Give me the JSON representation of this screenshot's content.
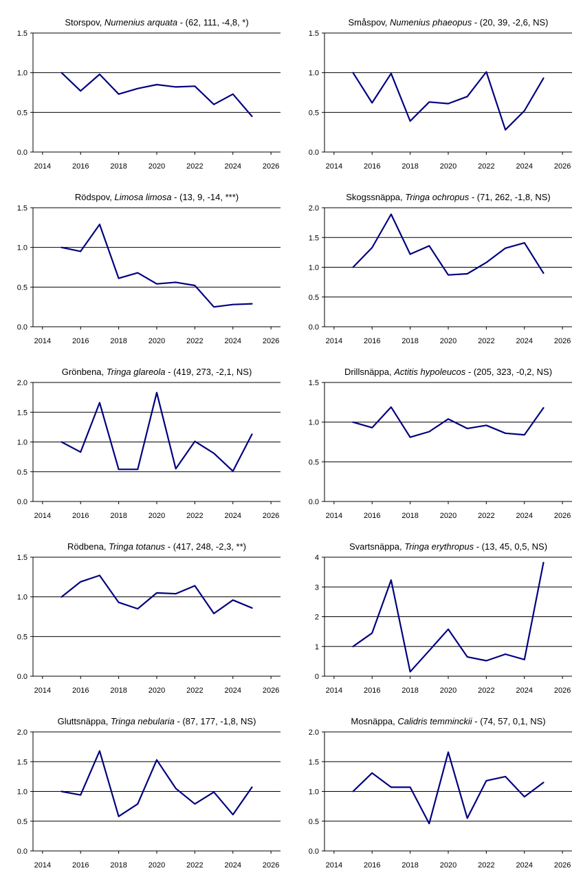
{
  "chart_data": [
    {
      "type": "line",
      "title": {
        "common": "Storspov",
        "sep": ", ",
        "scientific": "Numenius arquata",
        "stats": " - (62, 111, -4,8, *)"
      },
      "x": [
        2015,
        2016,
        2017,
        2018,
        2019,
        2020,
        2021,
        2022,
        2023,
        2024,
        2025
      ],
      "series": [
        {
          "values": [
            1.0,
            0.77,
            0.98,
            0.73,
            0.8,
            0.85,
            0.82,
            0.83,
            0.6,
            0.73,
            0.45
          ]
        }
      ],
      "xlim": [
        2013.5,
        2026.5
      ],
      "xticks": [
        2014,
        2016,
        2018,
        2020,
        2022,
        2024,
        2026
      ],
      "ylim": [
        0,
        1.5
      ],
      "yticks": [
        0.0,
        0.5,
        1.0,
        1.5
      ],
      "ytick_labels": [
        "0.0",
        "0.5",
        "1.0",
        "1.5"
      ],
      "grid": "horizontal"
    },
    {
      "type": "line",
      "title": {
        "common": "Småspov",
        "sep": ", ",
        "scientific": "Numenius phaeopus",
        "stats": " - (20, 39, -2,6, NS)"
      },
      "x": [
        2015,
        2016,
        2017,
        2018,
        2019,
        2020,
        2021,
        2022,
        2023,
        2024,
        2025
      ],
      "series": [
        {
          "values": [
            1.0,
            0.62,
            0.99,
            0.39,
            0.63,
            0.61,
            0.7,
            1.01,
            0.28,
            0.52,
            0.93
          ]
        }
      ],
      "xlim": [
        2013.5,
        2026.5
      ],
      "xticks": [
        2014,
        2016,
        2018,
        2020,
        2022,
        2024,
        2026
      ],
      "ylim": [
        0,
        1.5
      ],
      "yticks": [
        0.0,
        0.5,
        1.0,
        1.5
      ],
      "ytick_labels": [
        "0.0",
        "0.5",
        "1.0",
        "1.5"
      ],
      "grid": "horizontal"
    },
    {
      "type": "line",
      "title": {
        "common": "Rödspov",
        "sep": ", ",
        "scientific": "Limosa limosa",
        "stats": " - (13, 9, -14, ***)"
      },
      "x": [
        2015,
        2016,
        2017,
        2018,
        2019,
        2020,
        2021,
        2022,
        2023,
        2024,
        2025
      ],
      "series": [
        {
          "values": [
            1.0,
            0.95,
            1.29,
            0.61,
            0.68,
            0.54,
            0.56,
            0.52,
            0.25,
            0.28,
            0.29
          ]
        }
      ],
      "xlim": [
        2013.5,
        2026.5
      ],
      "xticks": [
        2014,
        2016,
        2018,
        2020,
        2022,
        2024,
        2026
      ],
      "ylim": [
        0,
        1.5
      ],
      "yticks": [
        0.0,
        0.5,
        1.0,
        1.5
      ],
      "ytick_labels": [
        "0.0",
        "0.5",
        "1.0",
        "1.5"
      ],
      "grid": "horizontal"
    },
    {
      "type": "line",
      "title": {
        "common": "Skogssnäppa",
        "sep": ", ",
        "scientific": "Tringa ochropus",
        "stats": " - (71, 262, -1,8, NS)"
      },
      "x": [
        2015,
        2016,
        2017,
        2018,
        2019,
        2020,
        2021,
        2022,
        2023,
        2024,
        2025
      ],
      "series": [
        {
          "values": [
            1.0,
            1.33,
            1.89,
            1.22,
            1.36,
            0.87,
            0.89,
            1.08,
            1.32,
            1.41,
            0.9
          ]
        }
      ],
      "xlim": [
        2013.5,
        2026.5
      ],
      "xticks": [
        2014,
        2016,
        2018,
        2020,
        2022,
        2024,
        2026
      ],
      "ylim": [
        0,
        2.0
      ],
      "yticks": [
        0.0,
        0.5,
        1.0,
        1.5,
        2.0
      ],
      "ytick_labels": [
        "0.0",
        "0.5",
        "1.0",
        "1.5",
        "2.0"
      ],
      "grid": "horizontal"
    },
    {
      "type": "line",
      "title": {
        "common": "Grönbena",
        "sep": ", ",
        "scientific": "Tringa glareola",
        "stats": " - (419, 273, -2,1, NS)"
      },
      "x": [
        2015,
        2016,
        2017,
        2018,
        2019,
        2020,
        2021,
        2022,
        2023,
        2024,
        2025
      ],
      "series": [
        {
          "values": [
            1.0,
            0.83,
            1.66,
            0.54,
            0.54,
            1.83,
            0.55,
            1.01,
            0.81,
            0.51,
            1.13
          ]
        }
      ],
      "xlim": [
        2013.5,
        2026.5
      ],
      "xticks": [
        2014,
        2016,
        2018,
        2020,
        2022,
        2024,
        2026
      ],
      "ylim": [
        0,
        2.0
      ],
      "yticks": [
        0.0,
        0.5,
        1.0,
        1.5,
        2.0
      ],
      "ytick_labels": [
        "0.0",
        "0.5",
        "1.0",
        "1.5",
        "2.0"
      ],
      "grid": "horizontal"
    },
    {
      "type": "line",
      "title": {
        "common": "Drillsnäppa",
        "sep": ", ",
        "scientific": "Actitis hypoleucos",
        "stats": " - (205, 323, -0,2, NS)"
      },
      "x": [
        2015,
        2016,
        2017,
        2018,
        2019,
        2020,
        2021,
        2022,
        2023,
        2024,
        2025
      ],
      "series": [
        {
          "values": [
            1.0,
            0.93,
            1.19,
            0.81,
            0.88,
            1.04,
            0.92,
            0.96,
            0.86,
            0.84,
            1.18
          ]
        }
      ],
      "xlim": [
        2013.5,
        2026.5
      ],
      "xticks": [
        2014,
        2016,
        2018,
        2020,
        2022,
        2024,
        2026
      ],
      "ylim": [
        0,
        1.5
      ],
      "yticks": [
        0.0,
        0.5,
        1.0,
        1.5
      ],
      "ytick_labels": [
        "0.0",
        "0.5",
        "1.0",
        "1.5"
      ],
      "grid": "horizontal"
    },
    {
      "type": "line",
      "title": {
        "common": "Rödbena",
        "sep": ", ",
        "scientific": "Tringa totanus",
        "stats": " - (417, 248, -2,3, **)"
      },
      "x": [
        2015,
        2016,
        2017,
        2018,
        2019,
        2020,
        2021,
        2022,
        2023,
        2024,
        2025
      ],
      "series": [
        {
          "values": [
            1.0,
            1.19,
            1.27,
            0.93,
            0.85,
            1.05,
            1.04,
            1.14,
            0.79,
            0.96,
            0.86
          ]
        }
      ],
      "xlim": [
        2013.5,
        2026.5
      ],
      "xticks": [
        2014,
        2016,
        2018,
        2020,
        2022,
        2024,
        2026
      ],
      "ylim": [
        0,
        1.5
      ],
      "yticks": [
        0.0,
        0.5,
        1.0,
        1.5
      ],
      "ytick_labels": [
        "0.0",
        "0.5",
        "1.0",
        "1.5"
      ],
      "grid": "horizontal"
    },
    {
      "type": "line",
      "title": {
        "common": "Svartsnäppa",
        "sep": ", ",
        "scientific": "Tringa erythropus",
        "stats": " - (13, 45, 0,5, NS)"
      },
      "x": [
        2015,
        2016,
        2017,
        2018,
        2019,
        2020,
        2021,
        2022,
        2023,
        2024,
        2025
      ],
      "series": [
        {
          "values": [
            1.0,
            1.45,
            3.23,
            0.15,
            0.86,
            1.58,
            0.65,
            0.52,
            0.74,
            0.56,
            3.82
          ]
        }
      ],
      "xlim": [
        2013.5,
        2026.5
      ],
      "xticks": [
        2014,
        2016,
        2018,
        2020,
        2022,
        2024,
        2026
      ],
      "ylim": [
        0,
        4
      ],
      "yticks": [
        0,
        1,
        2,
        3,
        4
      ],
      "ytick_labels": [
        "0",
        "1",
        "2",
        "3",
        "4"
      ],
      "grid": "horizontal"
    },
    {
      "type": "line",
      "title": {
        "common": "Gluttsnäppa",
        "sep": ", ",
        "scientific": "Tringa nebularia",
        "stats": " - (87, 177, -1,8, NS)"
      },
      "x": [
        2015,
        2016,
        2017,
        2018,
        2019,
        2020,
        2021,
        2022,
        2023,
        2024,
        2025
      ],
      "series": [
        {
          "values": [
            1.0,
            0.94,
            1.68,
            0.58,
            0.79,
            1.53,
            1.05,
            0.79,
            0.99,
            0.61,
            1.07
          ]
        }
      ],
      "xlim": [
        2013.5,
        2026.5
      ],
      "xticks": [
        2014,
        2016,
        2018,
        2020,
        2022,
        2024,
        2026
      ],
      "ylim": [
        0,
        2.0
      ],
      "yticks": [
        0.0,
        0.5,
        1.0,
        1.5,
        2.0
      ],
      "ytick_labels": [
        "0.0",
        "0.5",
        "1.0",
        "1.5",
        "2.0"
      ],
      "grid": "horizontal"
    },
    {
      "type": "line",
      "title": {
        "common": "Mosnäppa",
        "sep": ", ",
        "scientific": "Calidris temminckii",
        "stats": " - (74, 57, 0,1, NS)"
      },
      "x": [
        2015,
        2016,
        2017,
        2018,
        2019,
        2020,
        2021,
        2022,
        2023,
        2024,
        2025
      ],
      "series": [
        {
          "values": [
            1.0,
            1.31,
            1.07,
            1.07,
            0.46,
            1.66,
            0.55,
            1.18,
            1.25,
            0.91,
            1.15
          ]
        }
      ],
      "xlim": [
        2013.5,
        2026.5
      ],
      "xticks": [
        2014,
        2016,
        2018,
        2020,
        2022,
        2024,
        2026
      ],
      "ylim": [
        0,
        2.0
      ],
      "yticks": [
        0.0,
        0.5,
        1.0,
        1.5,
        2.0
      ],
      "ytick_labels": [
        "0.0",
        "0.5",
        "1.0",
        "1.5",
        "2.0"
      ],
      "grid": "horizontal"
    }
  ],
  "colors": {
    "line": "#000080",
    "axis": "#000000",
    "grid": "#000000"
  }
}
